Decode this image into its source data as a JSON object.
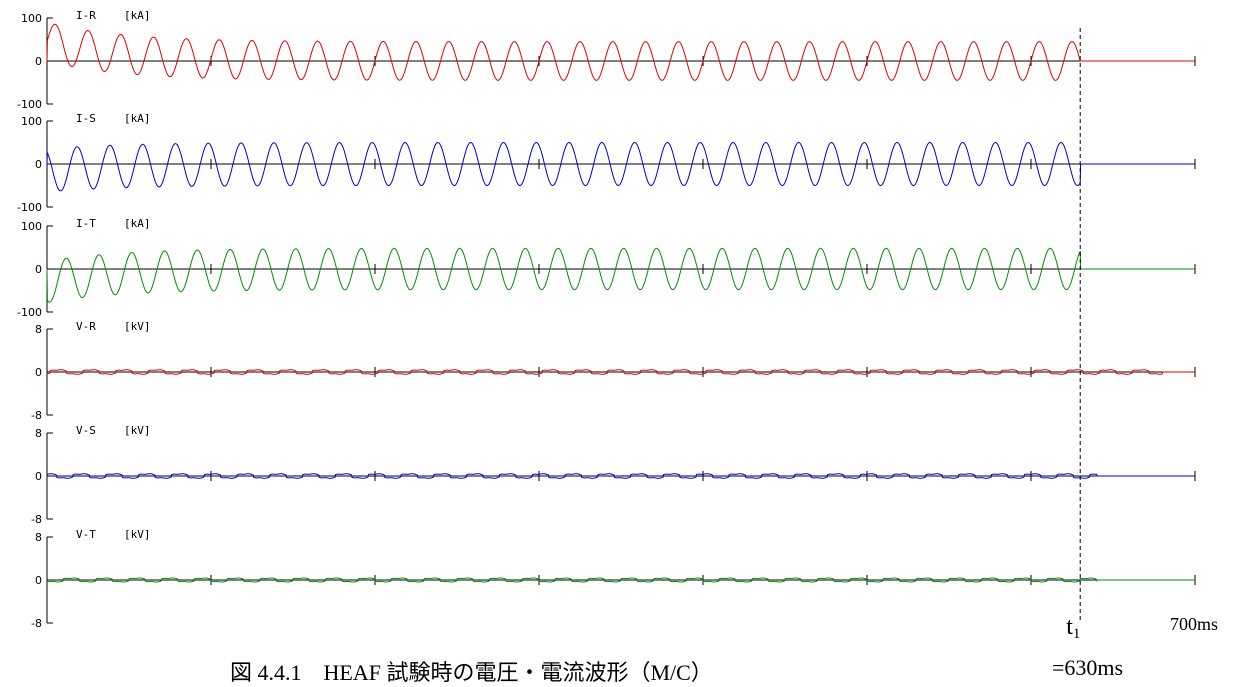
{
  "chart_data": [
    {
      "type": "line",
      "name": "I-R",
      "unit": "[kA]",
      "color": "#e00000",
      "ylim": [
        -100,
        100
      ],
      "ticks": [
        "100",
        "0",
        "-100"
      ],
      "amplitude": 45,
      "offset_start": 45,
      "frequency_hz": 50,
      "current": true,
      "cut_ms": 630
    },
    {
      "type": "line",
      "name": "I-S",
      "unit": "[kA]",
      "color": "#0000d0",
      "ylim": [
        -100,
        100
      ],
      "ticks": [
        "100",
        "0",
        "-100"
      ],
      "amplitude": 50,
      "offset_start": -15,
      "frequency_hz": 50,
      "current": true,
      "cut_ms": 630
    },
    {
      "type": "line",
      "name": "I-T",
      "unit": "[kA]",
      "color": "#009000",
      "ylim": [
        -100,
        100
      ],
      "ticks": [
        "100",
        "0",
        "-100"
      ],
      "amplitude": 48,
      "offset_start": -30,
      "frequency_hz": 50,
      "current": true,
      "cut_ms": 630
    },
    {
      "type": "line",
      "name": "V-R",
      "unit": "[kV]",
      "color": "#e00000",
      "ylim": [
        -8,
        8
      ],
      "ticks": [
        "8",
        "0",
        "-8"
      ],
      "amplitude": 0.4,
      "frequency_hz": 50,
      "current": false,
      "cut_ms": 680
    },
    {
      "type": "line",
      "name": "V-S",
      "unit": "[kV]",
      "color": "#0000d0",
      "ylim": [
        -8,
        8
      ],
      "ticks": [
        "8",
        "0",
        "-8"
      ],
      "amplitude": 0.4,
      "frequency_hz": 50,
      "current": false,
      "cut_ms": 640
    },
    {
      "type": "line",
      "name": "V-T",
      "unit": "[kV]",
      "color": "#009000",
      "ylim": [
        -8,
        8
      ],
      "ticks": [
        "8",
        "0",
        "-8"
      ],
      "amplitude": 0.35,
      "frequency_hz": 50,
      "current": false,
      "cut_ms": 640
    }
  ],
  "x_axis": {
    "xlim": [
      0,
      700
    ],
    "end_label": "700ms"
  },
  "marker": {
    "label": "t",
    "subscript": "1",
    "value_label": "=630ms",
    "x_ms": 630
  },
  "caption": "図 4.4.1　HEAF 試験時の電圧・電流波形（M/C）"
}
